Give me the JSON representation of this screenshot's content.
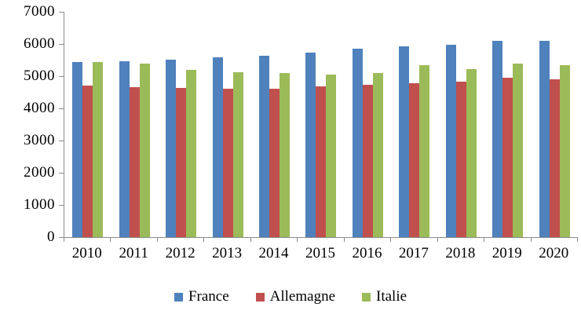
{
  "chart_data": {
    "type": "bar",
    "title": "",
    "categories": [
      "2010",
      "2011",
      "2012",
      "2013",
      "2014",
      "2015",
      "2016",
      "2017",
      "2018",
      "2019",
      "2020"
    ],
    "series": [
      {
        "name": "France",
        "color": "#4F81BD",
        "values": [
          5450,
          5460,
          5520,
          5590,
          5630,
          5730,
          5850,
          5920,
          5980,
          6110,
          6110
        ]
      },
      {
        "name": "Allemagne",
        "color": "#C0504D",
        "values": [
          4700,
          4650,
          4630,
          4600,
          4610,
          4690,
          4740,
          4790,
          4840,
          4950,
          4910
        ]
      },
      {
        "name": "Italie",
        "color": "#9BBB59",
        "values": [
          5440,
          5390,
          5200,
          5130,
          5090,
          5050,
          5110,
          5330,
          5210,
          5400,
          5340
        ]
      }
    ],
    "xlabel": "",
    "ylabel": "",
    "ylim": [
      0,
      7000
    ],
    "y_ticks": [
      0,
      1000,
      2000,
      3000,
      4000,
      5000,
      6000,
      7000
    ],
    "grid": false,
    "legend_position": "bottom",
    "axis_color": "#8a8a8a",
    "text_color": "#000000",
    "background_color": "#ffffff"
  }
}
